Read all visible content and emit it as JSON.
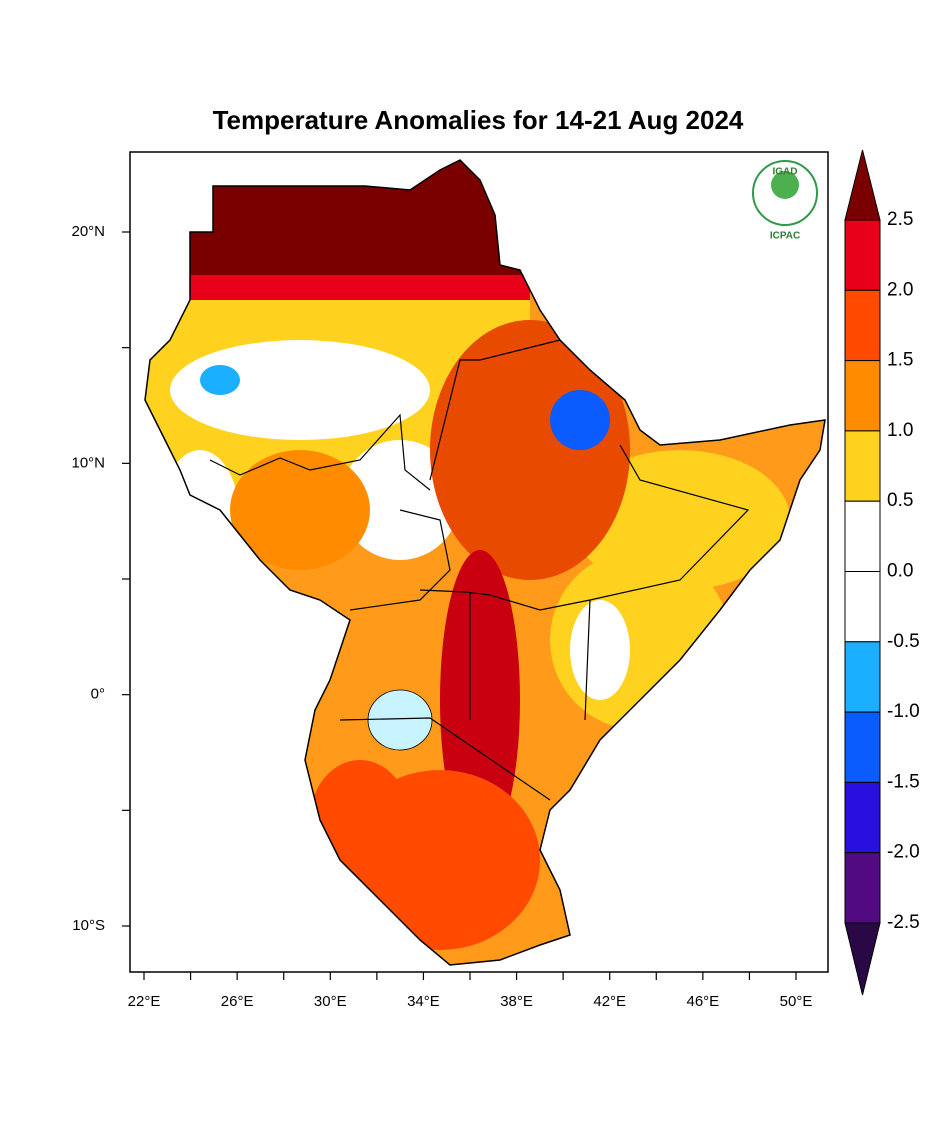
{
  "title": "Temperature Anomalies for 14-21 Aug 2024",
  "logo": {
    "top": "IGAD",
    "bottom": "ICPAC"
  },
  "map": {
    "lon_labels": [
      "22°E",
      "26°E",
      "30°E",
      "34°E",
      "38°E",
      "42°E",
      "46°E",
      "50°E"
    ],
    "lat_labels": [
      "20°N",
      "10°N",
      "0°",
      "10°S"
    ]
  },
  "colorbar": {
    "labels": [
      "2.5",
      "2.0",
      "1.5",
      "1.0",
      "0.5",
      "0.0",
      "-0.5",
      "-1.0",
      "-1.5",
      "-2.0",
      "-2.5"
    ],
    "top_color": "#7a0000",
    "bottom_color": "#2a0845",
    "colors": [
      "#e8001a",
      "#ff4a00",
      "#ff8c00",
      "#ffd21f",
      "#ffffff",
      "#ffffff",
      "#1ab0ff",
      "#0a5cff",
      "#2a10e0",
      "#520a80"
    ]
  }
}
